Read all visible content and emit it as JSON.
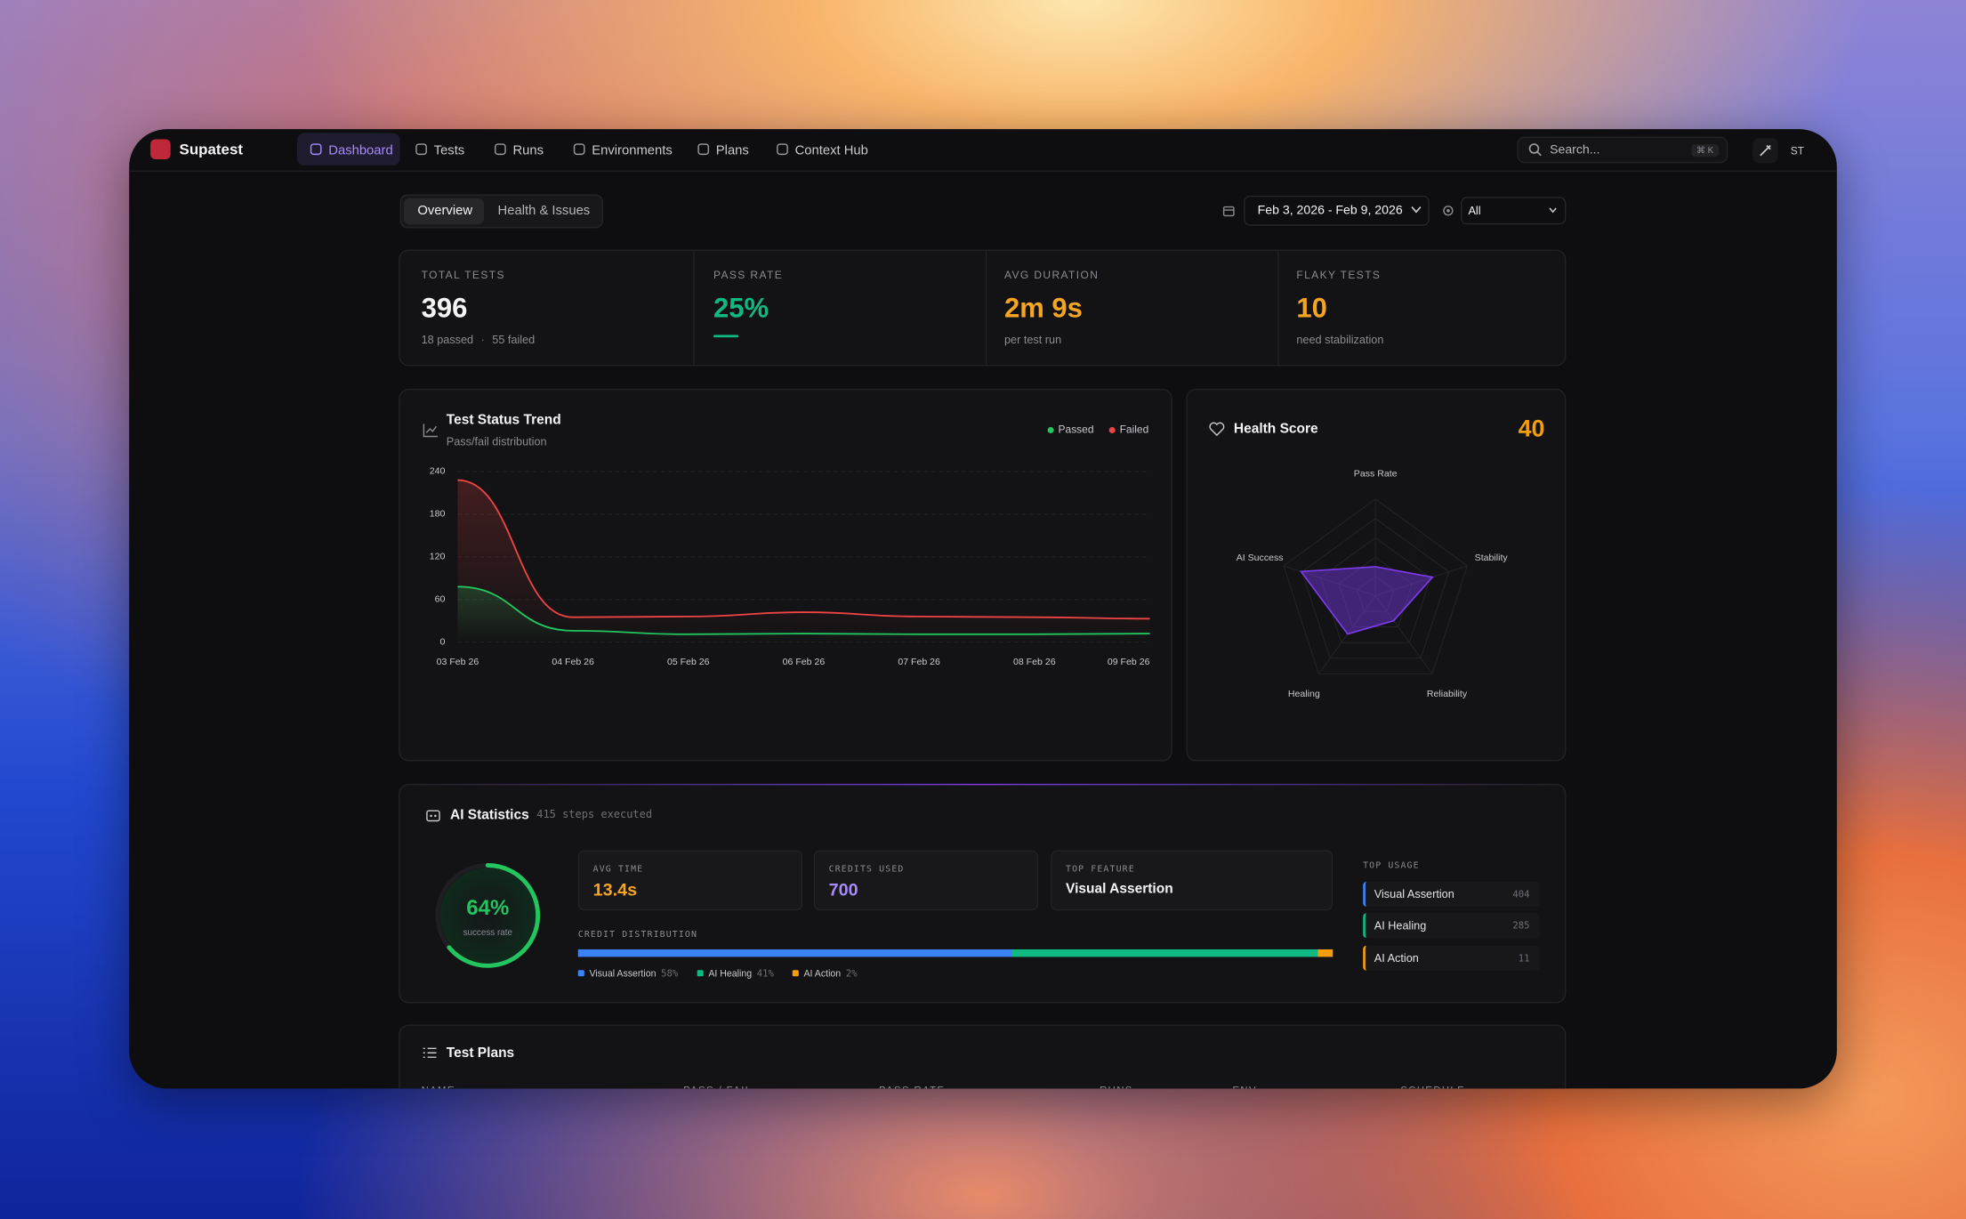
{
  "nav": {
    "brand": "Supatest",
    "items": [
      "Dashboard",
      "Tests",
      "Runs",
      "Environments",
      "Plans",
      "Context Hub"
    ],
    "search": "Search...",
    "shortcut": "⌘ K",
    "avatar": "ST"
  },
  "tabs": [
    "Overview",
    "Health & Issues"
  ],
  "filters": {
    "date_range": "Feb 3, 2026 - Feb 9, 2026",
    "environment": "All"
  },
  "stats": [
    {
      "label": "TOTAL TESTS",
      "value": "396",
      "details": [
        "18 passed",
        "55 failed"
      ],
      "color": "#f4f4f5"
    },
    {
      "label": "PASS RATE",
      "value": "25%",
      "color": "#10b981"
    },
    {
      "label": "AVG DURATION",
      "value": "2m 9s",
      "details": [
        "per test run"
      ],
      "color": "#f5a524"
    },
    {
      "label": "FLAKY TESTS",
      "value": "10",
      "details": [
        "need stabilization"
      ],
      "color": "#f5a524"
    }
  ],
  "trend": {
    "type": "line",
    "title": "Test Status Trend",
    "subtitle": "Pass/fail distribution",
    "x": [
      "03 Feb 26",
      "04 Feb 26",
      "05 Feb 26",
      "06 Feb 26",
      "07 Feb 26",
      "08 Feb 26",
      "09 Feb 26"
    ],
    "series": [
      {
        "name": "Passed",
        "color": "#22c55e",
        "values": [
          78,
          16,
          11,
          12,
          11,
          11,
          12
        ]
      },
      {
        "name": "Failed",
        "color": "#ef4444",
        "values": [
          228,
          35,
          36,
          42,
          36,
          35,
          33
        ]
      }
    ],
    "ylim": [
      0,
      240
    ],
    "yticks": [
      0,
      60,
      120,
      180,
      240
    ],
    "grid": true
  },
  "health": {
    "type": "radar",
    "title": "Health Score",
    "score": "40",
    "axes": [
      "Pass Rate",
      "Stability",
      "Reliability",
      "Healing",
      "AI Success"
    ],
    "values": [
      30,
      62,
      32,
      49,
      81
    ],
    "rlim": [
      0,
      100
    ],
    "color": "#7c3aed"
  },
  "ai_stats": {
    "title": "AI Statistics",
    "subtitle": "415 steps executed",
    "donut": {
      "type": "donut",
      "values": [
        64
      ],
      "value_labels": [
        "64%"
      ],
      "label": "success rate",
      "lim": [
        0,
        100
      ],
      "color": "#22c55e"
    },
    "cards": [
      {
        "label": "AVG TIME",
        "value": "13.4s",
        "color": "#f5a524"
      },
      {
        "label": "CREDITS USED",
        "value": "700",
        "color": "#a78bfa"
      },
      {
        "label": "TOP FEATURE",
        "value": "Visual Assertion",
        "color": "#f4f4f5"
      }
    ],
    "distribution": {
      "type": "stacked-bar",
      "title": "CREDIT DISTRIBUTION",
      "series": [
        {
          "name": "Visual Assertion",
          "color": "#3b82f6",
          "values": [
            58
          ],
          "value_labels": [
            "58%"
          ]
        },
        {
          "name": "AI Healing",
          "color": "#10b981",
          "values": [
            41
          ],
          "value_labels": [
            "41%"
          ]
        },
        {
          "name": "AI Action",
          "color": "#f59e0b",
          "values": [
            2
          ],
          "value_labels": [
            "2%"
          ]
        }
      ]
    },
    "top_usage": {
      "title": "TOP USAGE",
      "items": [
        {
          "name": "Visual Assertion",
          "count": 404,
          "color": "#3b82f6"
        },
        {
          "name": "AI Healing",
          "count": 285,
          "color": "#10b981"
        },
        {
          "name": "AI Action",
          "count": 11,
          "color": "#f59e0b"
        }
      ]
    }
  },
  "test_plans": {
    "title": "Test Plans",
    "columns": [
      "NAME",
      "PASS / FAIL",
      "PASS RATE",
      "RUNS",
      "ENV",
      "SCHEDULE"
    ]
  }
}
